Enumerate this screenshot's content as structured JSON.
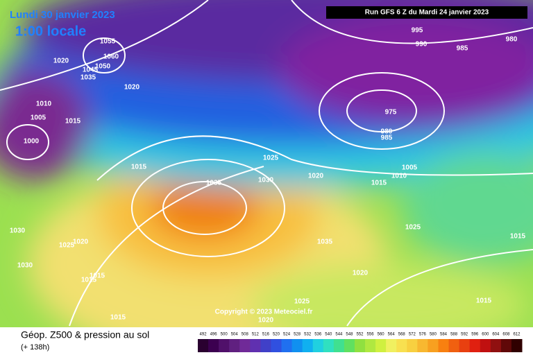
{
  "header": {
    "date": "Lundi 30 janvier 2023",
    "time": "1:00 locale",
    "run": "Run GFS 6 Z du Mardi 24 janvier 2023"
  },
  "copyright": "Copyright © 2023 Meteociel.fr",
  "footer": {
    "title": "Géop. Z500 & pression au sol",
    "subtitle": "(+ 138h)"
  },
  "isobar_labels": [
    "1055",
    "1060",
    "1020",
    "1050",
    "1045",
    "1035",
    "1020",
    "1010",
    "1005",
    "1015",
    "1000",
    "1015",
    "1025",
    "1030",
    "1020",
    "1035",
    "1015",
    "1010",
    "1005",
    "975",
    "980",
    "985",
    "995",
    "990",
    "985",
    "980",
    "1030",
    "1025",
    "1020",
    "1030",
    "1015",
    "1015",
    "1035",
    "1025",
    "1015",
    "1020",
    "1015",
    "1025",
    "1020",
    "1015"
  ],
  "legend": {
    "values": [
      492,
      496,
      500,
      504,
      508,
      512,
      516,
      520,
      524,
      528,
      532,
      536,
      540,
      544,
      548,
      552,
      556,
      560,
      564,
      568,
      572,
      576,
      580,
      584,
      588,
      592,
      596,
      600,
      604,
      608,
      612
    ]
  }
}
